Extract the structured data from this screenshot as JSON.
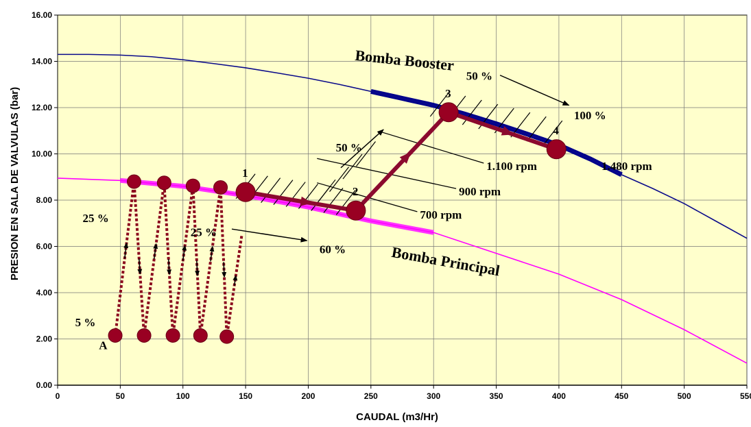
{
  "chart_data": {
    "type": "line",
    "xlabel": "CAUDAL (m3/Hr)",
    "ylabel": "PRESION EN SALA DE VALVULAS (bar)",
    "xlim": [
      0,
      550
    ],
    "ylim": [
      0,
      16
    ],
    "x_ticks": [
      "0",
      "50",
      "100",
      "150",
      "200",
      "250",
      "300",
      "350",
      "400",
      "450",
      "500",
      "550"
    ],
    "y_ticks": [
      "0.00",
      "2.00",
      "4.00",
      "6.00",
      "8.00",
      "10.00",
      "12.00",
      "14.00",
      "16.00"
    ],
    "grid": true,
    "background": "#ffffcc",
    "series": [
      {
        "name": "Bomba Booster",
        "color": "#0a0a8a",
        "x": [
          0,
          25,
          50,
          75,
          100,
          125,
          150,
          175,
          200,
          225,
          250,
          275,
          300,
          325,
          350,
          375,
          400,
          425,
          450,
          475,
          500,
          525,
          550
        ],
        "y": [
          14.3,
          14.3,
          14.27,
          14.2,
          14.07,
          13.9,
          13.72,
          13.5,
          13.27,
          13.0,
          12.7,
          12.4,
          12.1,
          11.72,
          11.3,
          10.85,
          10.38,
          9.78,
          9.1,
          8.5,
          7.85,
          7.1,
          6.35
        ],
        "highlight": {
          "color": "#00008b",
          "x": [
            250,
            450
          ]
        }
      },
      {
        "name": "Bomba Principal",
        "color": "#ff00ff",
        "x": [
          0,
          50,
          100,
          150,
          200,
          250,
          300,
          350,
          400,
          450,
          500,
          550
        ],
        "y": [
          8.95,
          8.85,
          8.6,
          8.2,
          7.7,
          7.1,
          6.6,
          5.7,
          4.8,
          3.7,
          2.4,
          0.95
        ],
        "highlight": {
          "color": "#ff33ff",
          "x": [
            50,
            300
          ]
        }
      }
    ],
    "operating_points": [
      {
        "label": "A",
        "x": 46,
        "y": 2.15
      },
      {
        "label": "",
        "x": 61,
        "y": 8.8
      },
      {
        "label": "",
        "x": 69,
        "y": 2.15
      },
      {
        "label": "",
        "x": 85,
        "y": 8.75
      },
      {
        "label": "",
        "x": 92,
        "y": 2.15
      },
      {
        "label": "",
        "x": 108,
        "y": 8.62
      },
      {
        "label": "",
        "x": 114,
        "y": 2.15
      },
      {
        "label": "",
        "x": 130,
        "y": 8.55
      },
      {
        "label": "",
        "x": 135,
        "y": 2.1
      },
      {
        "label": "1",
        "x": 150,
        "y": 8.35
      },
      {
        "label": "2",
        "x": 238,
        "y": 7.55
      },
      {
        "label": "3",
        "x": 312,
        "y": 11.8
      },
      {
        "label": "4",
        "x": 398,
        "y": 10.2
      }
    ],
    "zigzag_path_x": [
      46,
      61,
      69,
      85,
      92,
      108,
      114,
      130,
      135,
      147
    ],
    "zigzag_path_y": [
      2.15,
      8.8,
      2.15,
      8.75,
      2.15,
      8.62,
      2.15,
      8.55,
      2.1,
      6.5
    ],
    "main_path_x": [
      150,
      238,
      312,
      398
    ],
    "main_path_y": [
      8.35,
      7.55,
      11.8,
      10.2
    ],
    "rpm_lines": [
      {
        "label": "700  rpm",
        "x": [
          207,
          287
        ],
        "y": [
          8.75,
          7.5
        ]
      },
      {
        "label": "900  rpm",
        "x": [
          207,
          318
        ],
        "y": [
          9.8,
          8.5
        ]
      },
      {
        "label": "1.100  rpm",
        "x": [
          258,
          340
        ],
        "y": [
          10.95,
          9.6
        ]
      }
    ],
    "annotations": [
      {
        "text": "Bomba Booster",
        "x": 237,
        "y": 14.05,
        "size": 22,
        "rotate": 6
      },
      {
        "text": "Bomba Principal",
        "x": 266,
        "y": 5.55,
        "size": 22,
        "rotate": 10
      },
      {
        "text": "50 %",
        "x": 326,
        "y": 13.2,
        "size": 17
      },
      {
        "text": "100 %",
        "x": 412,
        "y": 11.5,
        "size": 17
      },
      {
        "text": "50 %",
        "x": 222,
        "y": 10.1,
        "size": 17
      },
      {
        "text": "25 %",
        "x": 20,
        "y": 7.05,
        "size": 17
      },
      {
        "text": "25 %",
        "x": 106,
        "y": 6.45,
        "size": 17
      },
      {
        "text": "60 %",
        "x": 209,
        "y": 5.7,
        "size": 17
      },
      {
        "text": "5 %",
        "x": 14,
        "y": 2.55,
        "size": 17
      },
      {
        "text": "1.480 rpm",
        "x": 434,
        "y": 9.3,
        "size": 17
      },
      {
        "text": "A",
        "x": 33,
        "y": 1.55,
        "size": 17
      }
    ],
    "arrows": [
      {
        "x1": 353,
        "y1": 13.4,
        "x2": 408,
        "y2": 12.1
      },
      {
        "x1": 226,
        "y1": 9.4,
        "x2": 260,
        "y2": 11.05
      },
      {
        "x1": 139,
        "y1": 6.75,
        "x2": 199,
        "y2": 6.25
      }
    ]
  }
}
